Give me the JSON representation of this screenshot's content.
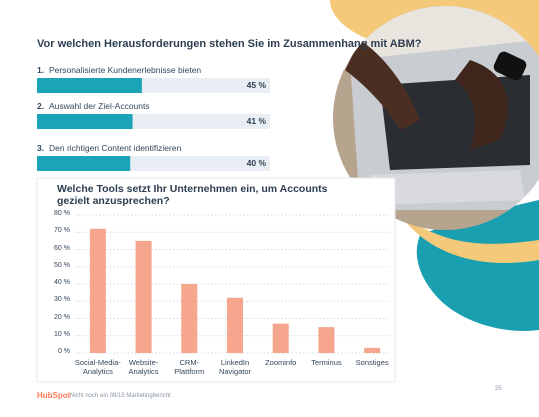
{
  "chart_data": [
    {
      "type": "hbar",
      "title": "Vor welchen Herausforderungen stehen Sie im Zusammenhang mit ABM?",
      "ranks": [
        "1.",
        "2.",
        "3."
      ],
      "categories": [
        "Personalisierte Kundenerlebnisse bieten",
        "Auswahl der Ziel-Accounts",
        "Den richtigen Content identifizieren"
      ],
      "values": [
        45,
        41,
        40
      ],
      "value_labels": [
        "45 %",
        "41 %",
        "40 %"
      ],
      "xlim": [
        0,
        100
      ],
      "color": "#1ba3b7"
    },
    {
      "type": "bar",
      "title": "Welche Tools setzt Ihr Unternehmen ein, um Accounts gezielt anzusprechen?",
      "categories": [
        "Social-Media-\nAnalytics",
        "Website-\nAnalytics",
        "CRM-\nPlattform",
        "LinkedIn\nNavigator",
        "Zoominfo",
        "Terminus",
        "Sonstiges"
      ],
      "values": [
        72,
        65,
        40,
        32,
        17,
        15,
        3
      ],
      "ylim": [
        0,
        80
      ],
      "yticks": [
        {
          "value": 0,
          "label": "0 %"
        },
        {
          "value": 10,
          "label": "10 %"
        },
        {
          "value": 20,
          "label": "20 %"
        },
        {
          "value": 30,
          "label": "30 %"
        },
        {
          "value": 40,
          "label": "40 %"
        },
        {
          "value": 50,
          "label": "50 %"
        },
        {
          "value": 60,
          "label": "60 %"
        },
        {
          "value": 70,
          "label": "70 %"
        },
        {
          "value": 80,
          "label": "80 %"
        }
      ],
      "grid": true,
      "color": "#f5a68c"
    }
  ],
  "footer": {
    "logo": "HubSpot",
    "text": "Nicht noch ein 08/15 Marketingbericht",
    "page": "25"
  }
}
